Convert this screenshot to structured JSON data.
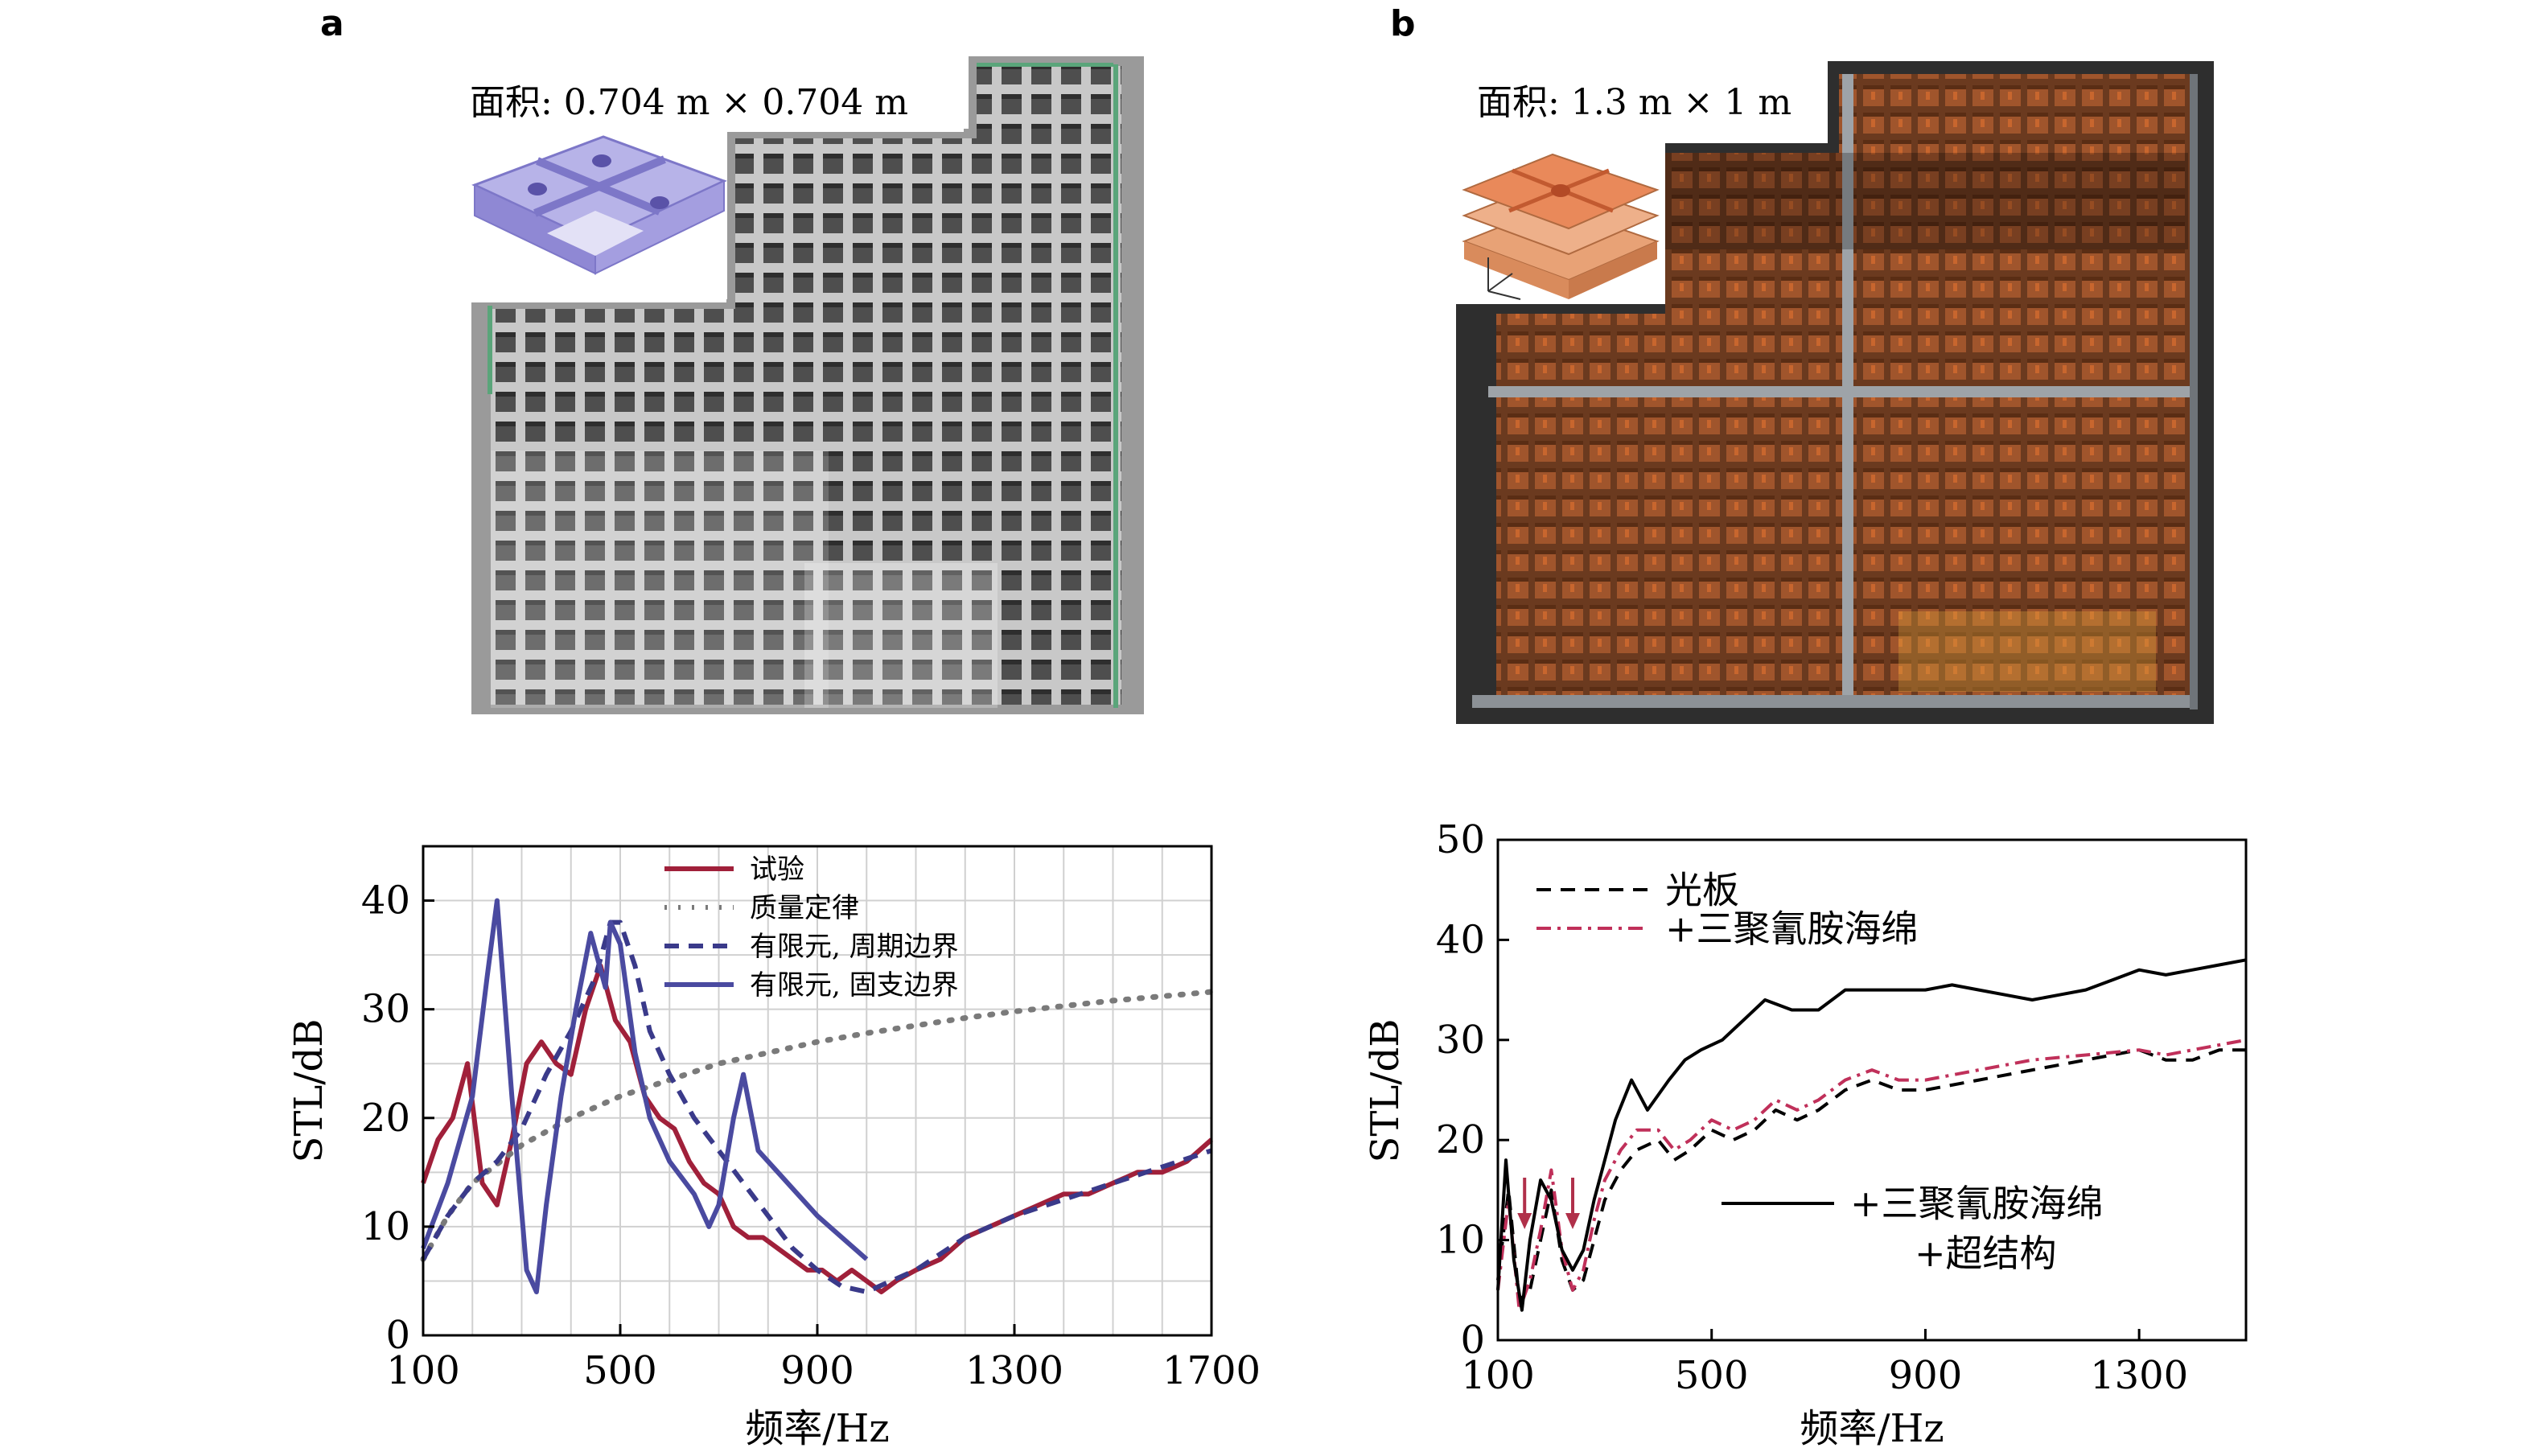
{
  "panels": {
    "a": {
      "letter": "a",
      "area_label": "面积: 0.704 m × 0.704 m"
    },
    "b": {
      "letter": "b",
      "area_label": "面积: 1.3 m × 1 m"
    }
  },
  "colors": {
    "experiment": "#a0203a",
    "mass_law": "#7a7a7a",
    "fem_periodic": "#3a3a8a",
    "fem_clamped": "#4a4aa0",
    "bare_plate": "#000000",
    "melamine": "#c0305a",
    "melamine_meta": "#000000"
  },
  "chart_data": [
    {
      "type": "line",
      "xlabel": "频率/Hz",
      "ylabel": "STL/dB",
      "xlim": [
        100,
        1700
      ],
      "ylim": [
        0,
        45
      ],
      "xticks": [
        100,
        500,
        900,
        1300,
        1700
      ],
      "yticks": [
        0,
        10,
        20,
        30,
        40
      ],
      "grid": true,
      "legend_position": "top-center",
      "series": [
        {
          "name": "试验",
          "style": "solid",
          "color": "#a0203a",
          "x": [
            100,
            130,
            160,
            190,
            220,
            250,
            280,
            310,
            340,
            370,
            400,
            430,
            460,
            490,
            520,
            550,
            580,
            610,
            640,
            670,
            700,
            730,
            760,
            790,
            820,
            850,
            880,
            910,
            940,
            970,
            1000,
            1030,
            1060,
            1100,
            1150,
            1200,
            1250,
            1300,
            1350,
            1400,
            1450,
            1500,
            1550,
            1600,
            1650,
            1700
          ],
          "y": [
            14,
            18,
            20,
            25,
            14,
            12,
            18,
            25,
            27,
            25,
            24,
            30,
            34,
            29,
            27,
            22,
            20,
            19,
            16,
            14,
            13,
            10,
            9,
            9,
            8,
            7,
            6,
            6,
            5,
            6,
            5,
            4,
            5,
            6,
            7,
            9,
            10,
            11,
            12,
            13,
            13,
            14,
            15,
            15,
            16,
            18
          ]
        },
        {
          "name": "质量定律",
          "style": "dotted",
          "color": "#7a7a7a",
          "x": [
            100,
            150,
            200,
            300,
            400,
            500,
            600,
            700,
            800,
            900,
            1000,
            1100,
            1200,
            1300,
            1400,
            1500,
            1600,
            1700
          ],
          "y": [
            7,
            11,
            14,
            17.5,
            20,
            22,
            23.5,
            25,
            26,
            27,
            27.8,
            28.5,
            29.2,
            29.8,
            30.3,
            30.8,
            31.2,
            31.6
          ]
        },
        {
          "name": "有限元, 周期边界",
          "style": "dashed",
          "color": "#3a3a8a",
          "x": [
            100,
            150,
            200,
            250,
            300,
            350,
            400,
            450,
            480,
            500,
            530,
            560,
            600,
            650,
            700,
            750,
            800,
            850,
            900,
            950,
            1000,
            1050,
            1100,
            1200,
            1300,
            1400,
            1500,
            1600,
            1700
          ],
          "y": [
            7,
            11,
            14,
            16,
            19,
            24,
            28,
            33,
            38,
            38,
            34,
            28,
            24,
            20,
            17,
            14,
            11,
            8,
            6,
            4.5,
            4,
            5,
            6,
            9,
            11,
            12.5,
            14,
            15.5,
            17
          ]
        },
        {
          "name": "有限元, 固支边界",
          "style": "solid",
          "color": "#4a4aa0",
          "x": [
            100,
            150,
            200,
            230,
            250,
            280,
            310,
            330,
            350,
            380,
            410,
            440,
            470,
            480,
            500,
            530,
            560,
            600,
            650,
            680,
            700,
            730,
            750,
            780,
            820,
            860,
            900,
            950,
            1000
          ],
          "y": [
            8,
            14,
            22,
            33,
            40,
            22,
            6,
            4,
            12,
            22,
            30,
            37,
            32,
            38,
            36,
            26,
            20,
            16,
            13,
            10,
            12,
            20,
            24,
            17,
            15,
            13,
            11,
            9,
            7
          ]
        }
      ]
    },
    {
      "type": "line",
      "xlabel": "频率/Hz",
      "ylabel": "STL/dB",
      "xlim": [
        100,
        1500
      ],
      "ylim": [
        0,
        50
      ],
      "xticks": [
        100,
        500,
        900,
        1300
      ],
      "yticks": [
        0,
        10,
        20,
        30,
        40,
        50
      ],
      "grid": false,
      "legend_position": "top-left",
      "annotations": {
        "arrows_at_x": [
          150,
          240
        ],
        "inline_label_line1": "+三聚氰胺海绵",
        "inline_label_line2": "+超结构"
      },
      "series": [
        {
          "name": "光板",
          "style": "dashed",
          "color": "#000000",
          "x": [
            100,
            120,
            140,
            160,
            180,
            200,
            220,
            240,
            260,
            280,
            300,
            330,
            360,
            400,
            430,
            460,
            500,
            540,
            580,
            620,
            660,
            700,
            750,
            800,
            850,
            900,
            1000,
            1100,
            1200,
            1300,
            1350,
            1400,
            1450,
            1500
          ],
          "y": [
            6,
            15,
            4,
            5,
            10,
            15,
            8,
            5,
            6,
            10,
            14,
            17,
            19,
            20,
            18,
            19,
            21,
            20,
            21,
            23,
            22,
            23,
            25,
            26,
            25,
            25,
            26,
            27,
            28,
            29,
            28,
            28,
            29,
            29
          ]
        },
        {
          "name": "+三聚氰胺海绵",
          "style": "dashdot",
          "color": "#c0305a",
          "x": [
            100,
            120,
            140,
            160,
            180,
            200,
            220,
            240,
            260,
            280,
            300,
            330,
            360,
            400,
            430,
            460,
            500,
            540,
            580,
            620,
            660,
            700,
            750,
            800,
            850,
            900,
            1000,
            1100,
            1200,
            1300,
            1350,
            1400,
            1450,
            1500
          ],
          "y": [
            5,
            14,
            3,
            6,
            11,
            17,
            9,
            5,
            7,
            12,
            16,
            19,
            21,
            21,
            19,
            20,
            22,
            21,
            22,
            24,
            23,
            24,
            26,
            27,
            26,
            26,
            27,
            28,
            28.5,
            29,
            28.5,
            29,
            29.5,
            30
          ]
        },
        {
          "name": "+三聚氰胺海绵 +超结构",
          "style": "solid",
          "color": "#000000",
          "x": [
            100,
            115,
            130,
            145,
            160,
            180,
            200,
            220,
            240,
            260,
            280,
            300,
            320,
            350,
            380,
            420,
            450,
            480,
            520,
            560,
            600,
            650,
            700,
            750,
            800,
            850,
            900,
            950,
            1000,
            1050,
            1100,
            1150,
            1200,
            1250,
            1300,
            1350,
            1400,
            1450,
            1500
          ],
          "y": [
            5,
            18,
            8,
            3,
            10,
            16,
            14,
            9,
            7,
            9,
            14,
            18,
            22,
            26,
            23,
            26,
            28,
            29,
            30,
            32,
            34,
            33,
            33,
            35,
            35,
            35,
            35,
            35.5,
            35,
            34.5,
            34,
            34.5,
            35,
            36,
            37,
            36.5,
            37,
            37.5,
            38
          ]
        }
      ]
    }
  ]
}
